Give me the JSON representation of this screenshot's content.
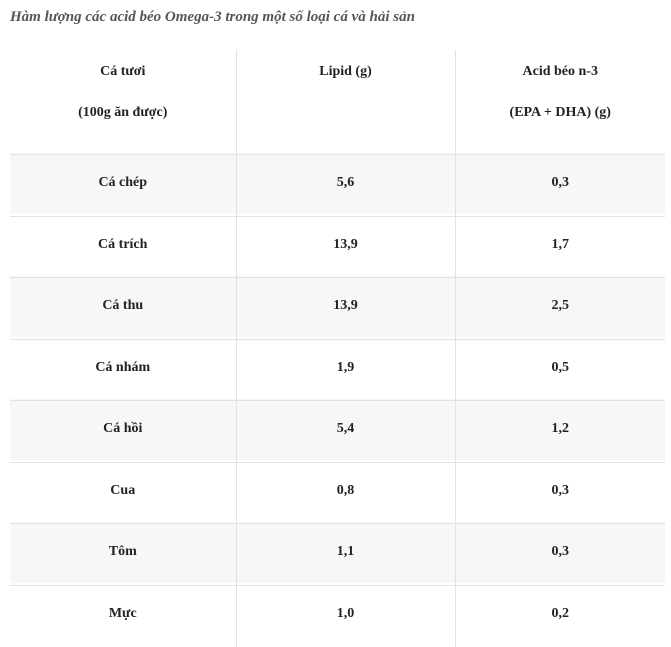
{
  "title": "Hàm lượng các acid béo Omega-3 trong một số loại cá và hải sản",
  "table": {
    "headers": [
      {
        "line1": "Cá tươi",
        "line2": "(100g ăn được)"
      },
      {
        "line1": "Lipid (g)",
        "line2": ""
      },
      {
        "line1": "Acid béo n-3",
        "line2": "(EPA + DHA) (g)"
      }
    ],
    "rows": [
      [
        "Cá chép",
        "5,6",
        "0,3"
      ],
      [
        "Cá trích",
        "13,9",
        "1,7"
      ],
      [
        "Cá thu",
        "13,9",
        "2,5"
      ],
      [
        "Cá nhám",
        "1,9",
        "0,5"
      ],
      [
        "Cá hồi",
        "5,4",
        "1,2"
      ],
      [
        "Cua",
        "0,8",
        "0,3"
      ],
      [
        "Tôm",
        "1,1",
        "0,3"
      ],
      [
        "Mực",
        "1,0",
        "0,2"
      ]
    ]
  }
}
